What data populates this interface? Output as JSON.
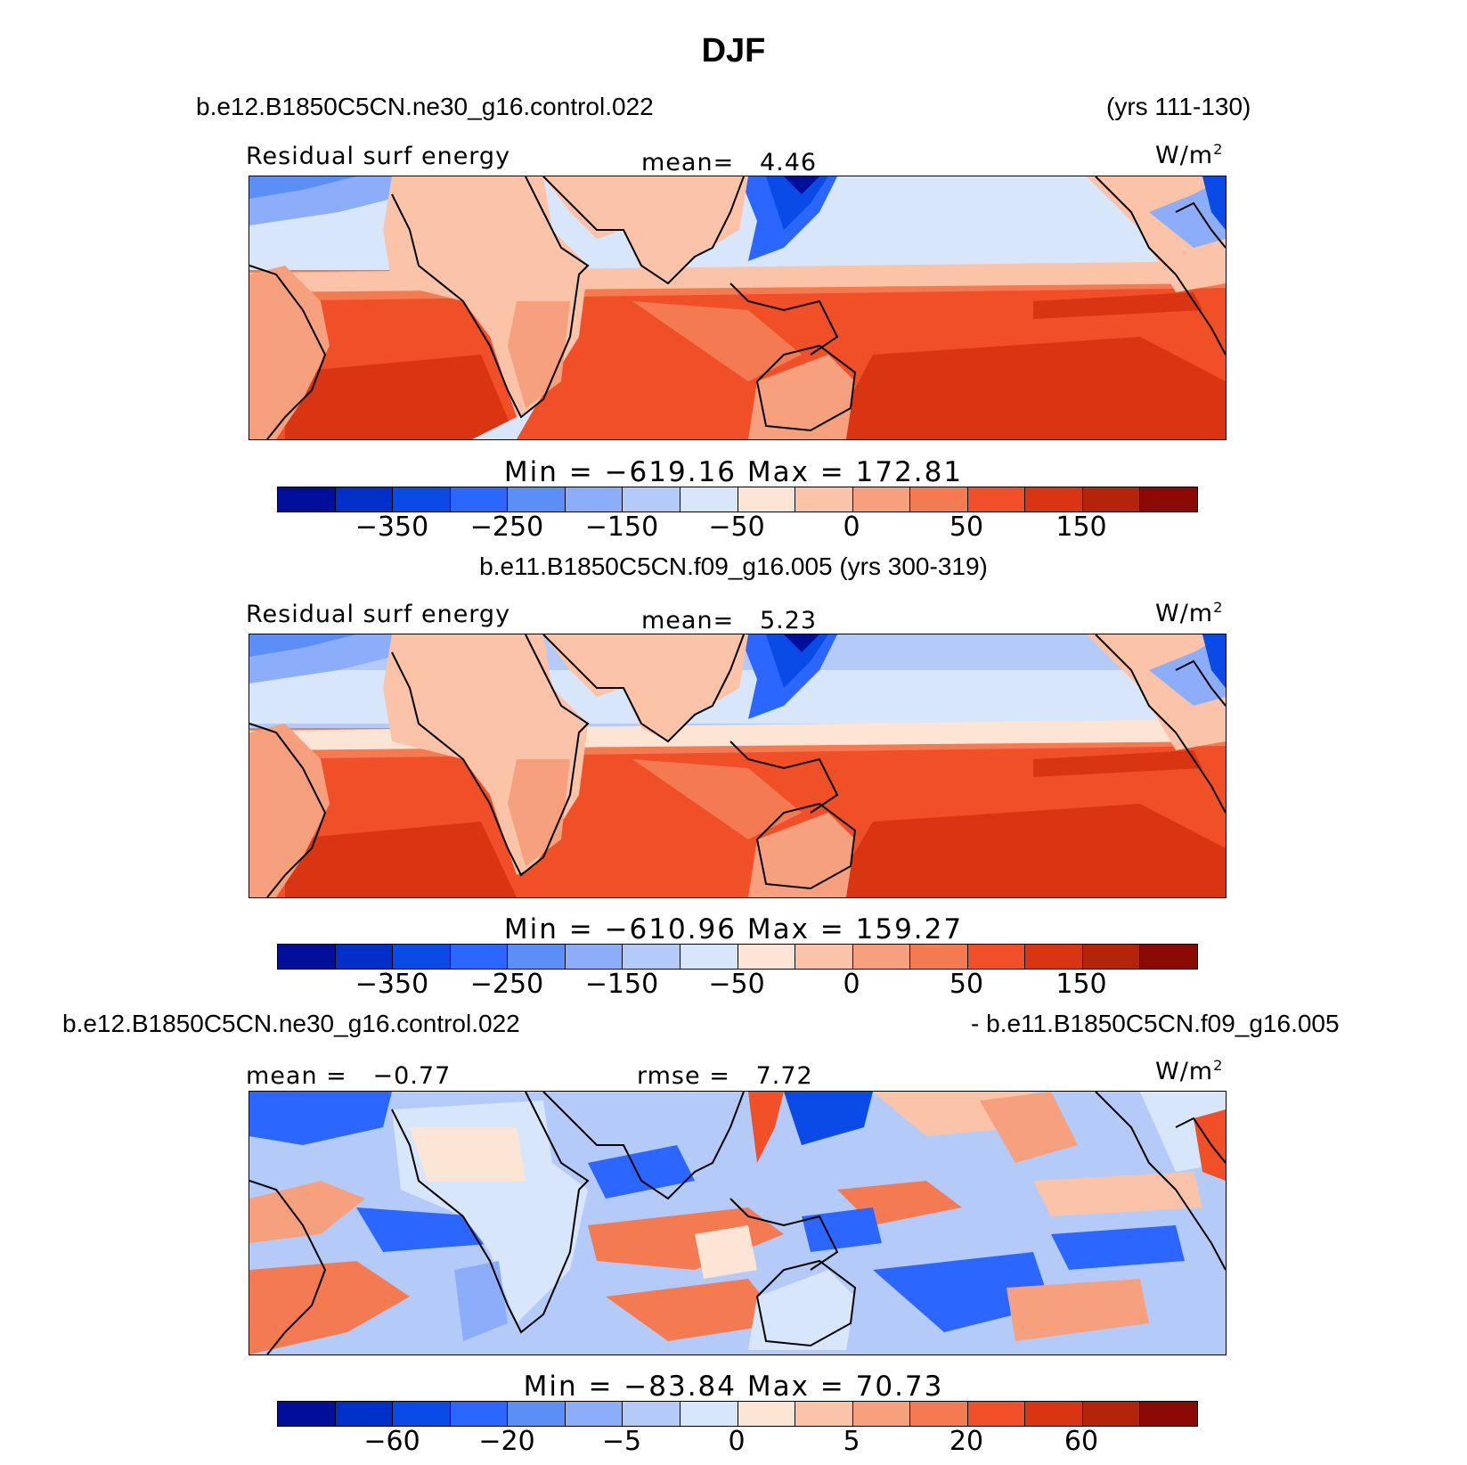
{
  "title": "DJF",
  "colors": [
    "#000e9a",
    "#0030c8",
    "#0a4ae6",
    "#2a66ff",
    "#5c8ff5",
    "#8caefa",
    "#b4cbfa",
    "#d8e6fb",
    "#fde5d6",
    "#fbc3a8",
    "#f7a07e",
    "#f47a52",
    "#f04f27",
    "#d93512",
    "#b3250a",
    "#8b0a05"
  ],
  "panel1": {
    "case": "b.e12.B1850C5CN.ne30_g16.control.022",
    "years": "(yrs 111-130)",
    "variable": "Residual surf energy",
    "mean_label": "mean=",
    "mean_value": "4.46",
    "units_base": "W/m",
    "units_exp": "2",
    "minmax": "Min = −619.16  Max = 172.81",
    "ticks": [
      "−350",
      "−250",
      "−150",
      "−50",
      "0",
      "50",
      "150"
    ]
  },
  "panel2": {
    "case": "b.e11.B1850C5CN.f09_g16.005 (yrs 300-319)",
    "variable": "Residual surf energy",
    "mean_label": "mean=",
    "mean_value": "5.23",
    "units_base": "W/m",
    "units_exp": "2",
    "minmax": "Min = −610.96  Max = 159.27",
    "ticks": [
      "−350",
      "−250",
      "−150",
      "−50",
      "0",
      "50",
      "150"
    ]
  },
  "panel3": {
    "case_a": "b.e12.B1850C5CN.ne30_g16.control.022",
    "case_b": "- b.e11.B1850C5CN.f09_g16.005",
    "mean_label": "mean =",
    "mean_value": "−0.77",
    "rmse_label": "rmse =",
    "rmse_value": "7.72",
    "units_base": "W/m",
    "units_exp": "2",
    "minmax": "Min = −83.84  Max =  70.73",
    "ticks": [
      "−60",
      "−20",
      "−5",
      "0",
      "5",
      "20",
      "60"
    ]
  }
}
